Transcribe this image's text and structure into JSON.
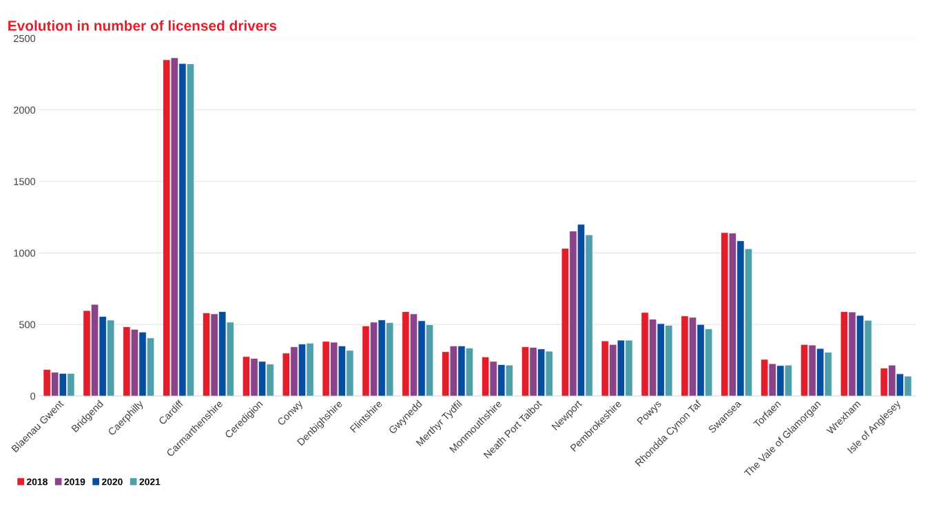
{
  "chart_data": {
    "type": "bar",
    "title": "Evolution in number of licensed drivers",
    "categories": [
      "Blaenau Gwent",
      "Bridgend",
      "Caerphilly",
      "Cardiff",
      "Carmarthenshire",
      "Ceredigion",
      "Conwy",
      "Denbighshire",
      "Flintshire",
      "Gwynedd",
      "Merthyr Tydfil",
      "Monmouthshire",
      "Neath Port Talbot",
      "Newport",
      "Pembrokeshire",
      "Powys",
      "Rhondda Cynon Taf",
      "Swansea",
      "Torfaen",
      "The Vale of Glamorgan",
      "Wrexham",
      "Isle of Anglesey"
    ],
    "series": [
      {
        "name": "2018",
        "color": "#e31e2a",
        "values": [
          185,
          597,
          484,
          2350,
          581,
          276,
          300,
          382,
          490,
          590,
          310,
          273,
          344,
          1032,
          385,
          584,
          560,
          1142,
          256,
          360,
          590,
          195
        ]
      },
      {
        "name": "2019",
        "color": "#8a4389",
        "values": [
          166,
          640,
          466,
          2364,
          574,
          263,
          344,
          376,
          516,
          574,
          350,
          242,
          340,
          1153,
          360,
          537,
          550,
          1139,
          226,
          356,
          587,
          216
        ]
      },
      {
        "name": "2020",
        "color": "#074d9f",
        "values": [
          158,
          556,
          447,
          2324,
          590,
          242,
          363,
          350,
          532,
          526,
          350,
          219,
          329,
          1200,
          390,
          506,
          500,
          1085,
          213,
          332,
          563,
          155
        ]
      },
      {
        "name": "2021",
        "color": "#4f9fab",
        "values": [
          158,
          531,
          406,
          2322,
          516,
          223,
          369,
          319,
          513,
          498,
          335,
          216,
          313,
          1126,
          390,
          494,
          469,
          1029,
          216,
          306,
          529,
          139
        ]
      }
    ],
    "ylim": [
      0,
      2500
    ],
    "yticks": [
      0,
      500,
      1000,
      1500,
      2000,
      2500
    ],
    "grid": "y",
    "legend": "bottom left"
  }
}
